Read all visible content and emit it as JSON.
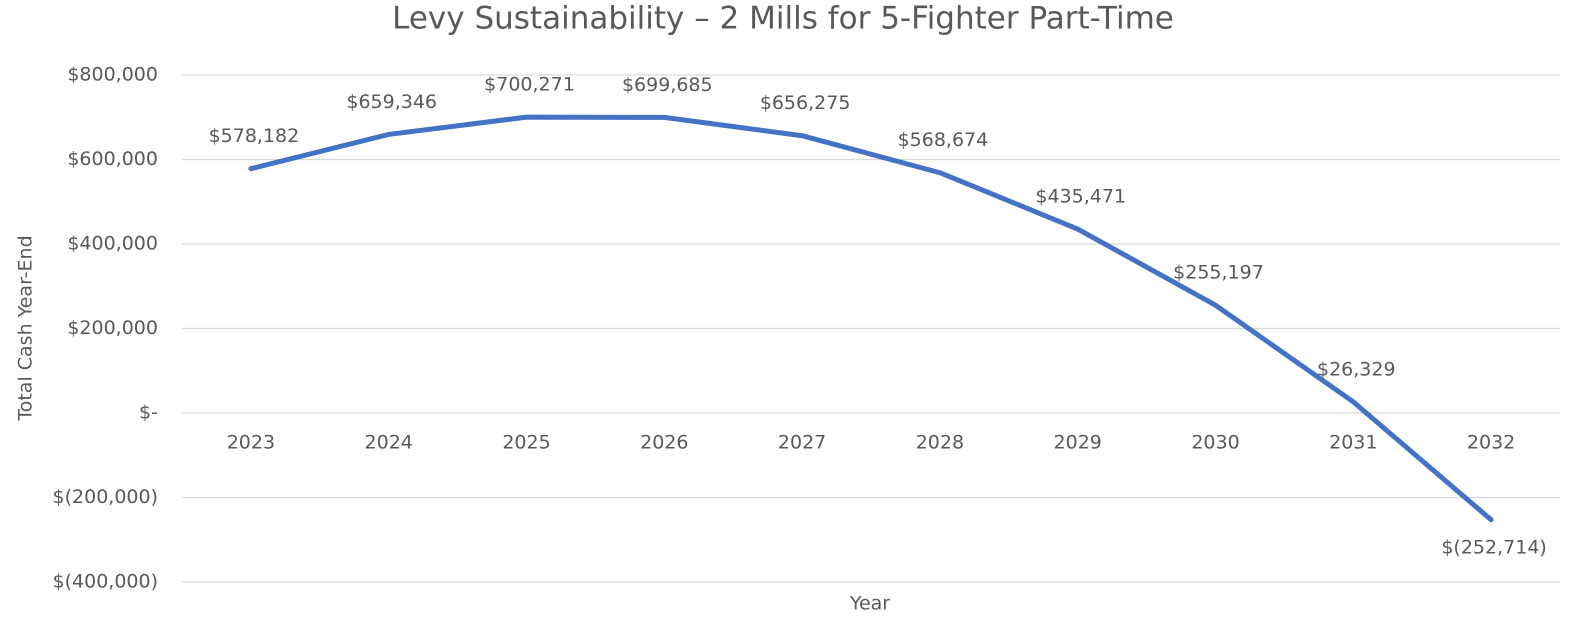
{
  "chart_data": {
    "type": "line",
    "title": "Levy Sustainability – 2 Mills for 5-Fighter Part-Time",
    "x_label": "Year",
    "y_label": "Total Cash Year-End",
    "categories": [
      "2023",
      "2024",
      "2025",
      "2026",
      "2027",
      "2028",
      "2029",
      "2030",
      "2031",
      "2032"
    ],
    "series": [
      {
        "name": "Total Cash Year-End",
        "color": "#4472c4",
        "values": [
          578182,
          659346,
          700271,
          699685,
          656275,
          568674,
          435471,
          255197,
          26329,
          -252714
        ],
        "value_labels": [
          "$578,182",
          "$659,346",
          "$700,271",
          "$699,685",
          "$656,275",
          "$568,674",
          "$435,471",
          "$255,197",
          "$26,329",
          "$(252,714)"
        ]
      }
    ],
    "ylim": [
      -400000,
      800000
    ],
    "yticks": [
      {
        "value": -400000,
        "label": "$(400,000)"
      },
      {
        "value": -200000,
        "label": "$(200,000)"
      },
      {
        "value": 0,
        "label": "$-"
      },
      {
        "value": 200000,
        "label": "$200,000"
      },
      {
        "value": 400000,
        "label": "$400,000"
      },
      {
        "value": 600000,
        "label": "$600,000"
      },
      {
        "value": 800000,
        "label": "$800,000"
      }
    ],
    "grid": true
  }
}
